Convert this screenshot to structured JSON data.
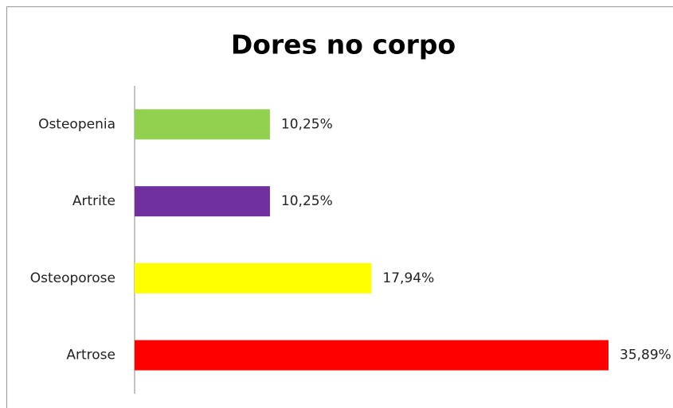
{
  "chart_data": {
    "type": "bar",
    "orientation": "horizontal",
    "title": "Dores no corpo",
    "categories": [
      "Osteopenia",
      "Artrite",
      "Osteoporose",
      "Artrose"
    ],
    "values": [
      10.25,
      10.25,
      17.94,
      35.89
    ],
    "value_labels": [
      "10,25%",
      "10,25%",
      "17,94%",
      "35,89%"
    ],
    "colors": [
      "#92d050",
      "#7030a0",
      "#ffff00",
      "#ff0000"
    ],
    "grid": false
  }
}
